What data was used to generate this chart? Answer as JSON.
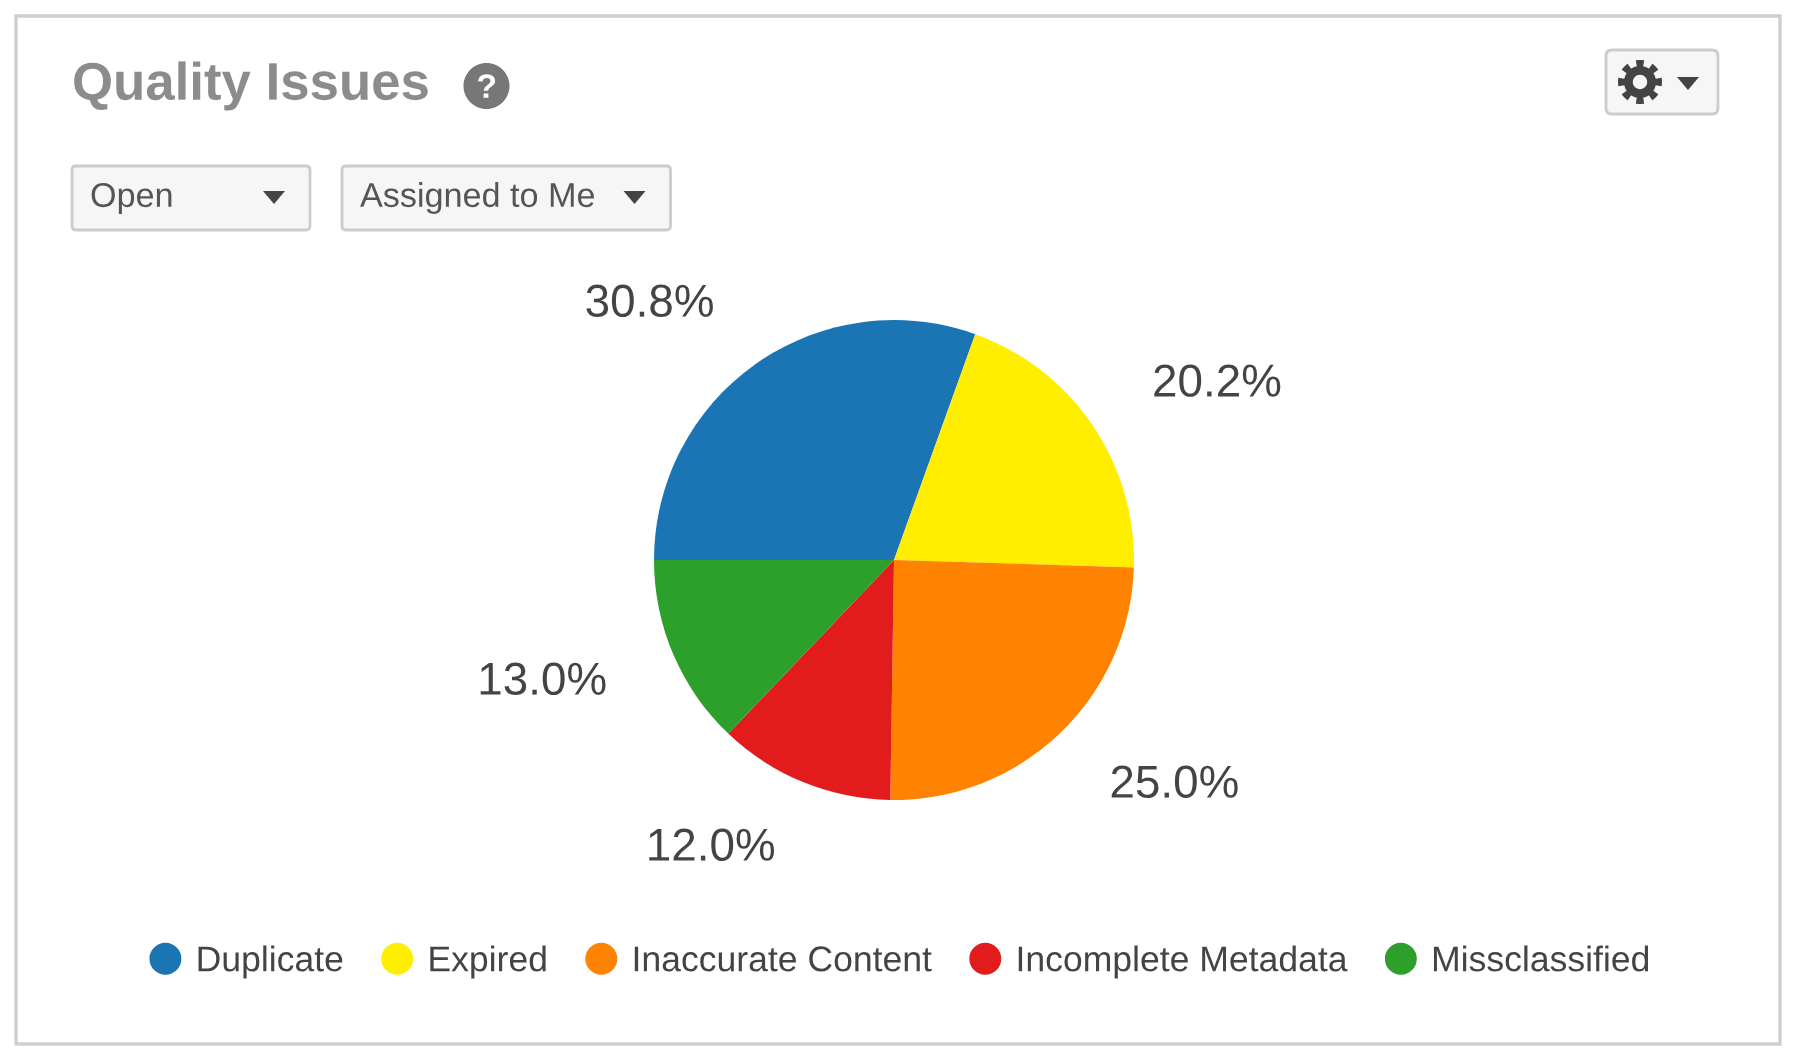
{
  "chart_data": {
    "type": "pie",
    "title": "Quality Issues",
    "categories": [
      "Duplicate",
      "Expired",
      "Inaccurate Content",
      "Incomplete Metadata",
      "Missclassified"
    ],
    "values": [
      30.8,
      20.2,
      25.0,
      12.0,
      13.0
    ],
    "value_labels": [
      "30.8%",
      "20.2%",
      "25.0%",
      "12.0%",
      "13.0%"
    ],
    "colors": [
      "#1b75b5",
      "#ffee00",
      "#ff8200",
      "#e21c1c",
      "#2ca02a"
    ],
    "legend": "bottom",
    "annotations": [
      "Open",
      "Assigned to Me"
    ]
  }
}
